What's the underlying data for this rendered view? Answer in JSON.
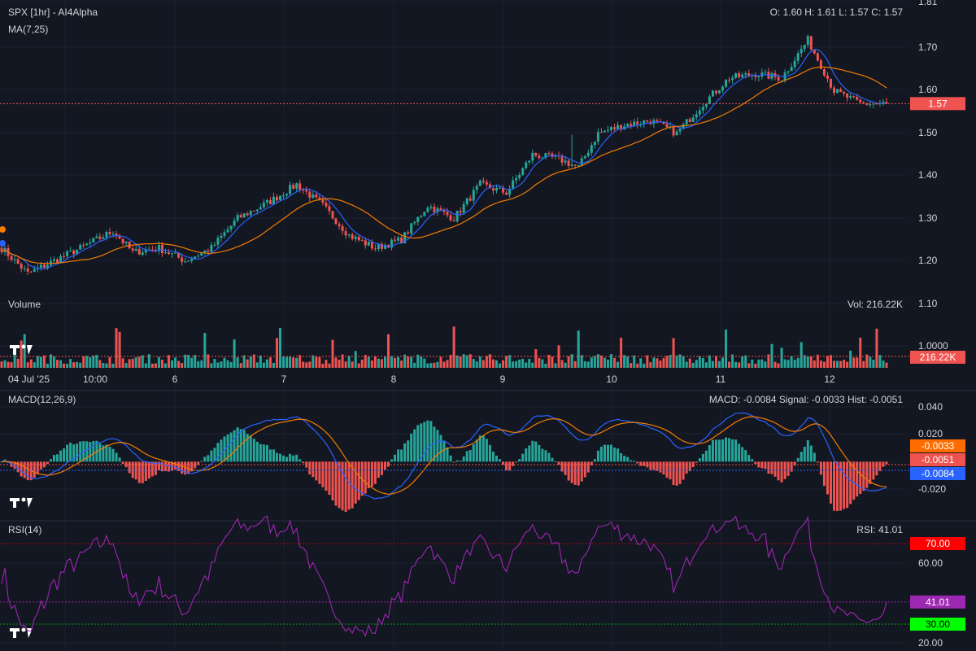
{
  "main": {
    "title": "SPX [1hr] - AI4Alpha",
    "indicator": "MA(7,25)",
    "ohlc": "O: 1.60 H: 1.61 L: 1.57 C: 1.57",
    "last_price": "1.57",
    "price_ticks": [
      "1.81",
      "1.70",
      "1.60",
      "1.50",
      "1.40",
      "1.30",
      "1.20",
      "1.10",
      "1.0000"
    ]
  },
  "volume": {
    "label": "Volume",
    "readout": "Vol: 216.22K",
    "last": "216.22K"
  },
  "time_axis": [
    "04 Jul '25",
    "10:00",
    "6",
    "7",
    "8",
    "9",
    "10",
    "11",
    "12"
  ],
  "macd": {
    "label": "MACD(12,26,9)",
    "readout": "MACD: -0.0084 Signal: -0.0033 Hist: -0.0051",
    "ticks": [
      "0.040",
      "0.020",
      "-0.020"
    ],
    "signal_tag": "-0.0033",
    "hist_tag": "-0.0051",
    "macd_tag": "-0.0084"
  },
  "rsi": {
    "label": "RSI(14)",
    "readout": "RSI: 41.01",
    "ticks": [
      "60.00",
      "20.00"
    ],
    "upper_tag": "70.00",
    "value_tag": "41.01",
    "lower_tag": "30.00"
  },
  "colors": {
    "background": "#131722",
    "up": "#26a69a",
    "down": "#ef5350",
    "ma_fast": "#2962ff",
    "ma_slow": "#f57c00",
    "rsi": "#9c27b0",
    "rsi_upper": "#ff0000",
    "rsi_lower": "#00ff00",
    "macd_signal_tag": "#ff6d00"
  },
  "chart_data": [
    {
      "type": "candlestick",
      "title": "SPX [1hr] - AI4Alpha",
      "x": [
        "04 Jul '25",
        "10:00",
        "6",
        "7",
        "8",
        "9",
        "10",
        "11",
        "12"
      ],
      "ylim": [
        1.0,
        1.81
      ],
      "anchors": [
        {
          "i": 0,
          "v": 1.23
        },
        {
          "i": 8,
          "v": 1.17
        },
        {
          "i": 16,
          "v": 1.2
        },
        {
          "i": 24,
          "v": 1.23
        },
        {
          "i": 34,
          "v": 1.27
        },
        {
          "i": 40,
          "v": 1.22
        },
        {
          "i": 48,
          "v": 1.23
        },
        {
          "i": 56,
          "v": 1.2
        },
        {
          "i": 64,
          "v": 1.23
        },
        {
          "i": 72,
          "v": 1.3
        },
        {
          "i": 82,
          "v": 1.34
        },
        {
          "i": 90,
          "v": 1.38
        },
        {
          "i": 98,
          "v": 1.33
        },
        {
          "i": 106,
          "v": 1.26
        },
        {
          "i": 114,
          "v": 1.23
        },
        {
          "i": 122,
          "v": 1.25
        },
        {
          "i": 130,
          "v": 1.33
        },
        {
          "i": 138,
          "v": 1.3
        },
        {
          "i": 146,
          "v": 1.38
        },
        {
          "i": 154,
          "v": 1.36
        },
        {
          "i": 162,
          "v": 1.45
        },
        {
          "i": 170,
          "v": 1.44
        },
        {
          "i": 176,
          "v": 1.42
        },
        {
          "i": 182,
          "v": 1.5
        },
        {
          "i": 190,
          "v": 1.52
        },
        {
          "i": 198,
          "v": 1.53
        },
        {
          "i": 206,
          "v": 1.5
        },
        {
          "i": 214,
          "v": 1.57
        },
        {
          "i": 222,
          "v": 1.63
        },
        {
          "i": 230,
          "v": 1.64
        },
        {
          "i": 238,
          "v": 1.63
        },
        {
          "i": 246,
          "v": 1.72
        },
        {
          "i": 254,
          "v": 1.6
        },
        {
          "i": 262,
          "v": 1.57
        },
        {
          "i": 270,
          "v": 1.57
        }
      ],
      "moving_averages": [
        "MA 7",
        "MA 25"
      ]
    },
    {
      "type": "bar",
      "title": "Volume",
      "last_value": "216.22K"
    },
    {
      "type": "line",
      "title": "MACD(12,26,9)",
      "ylim": [
        -0.03,
        0.045
      ],
      "macd": -0.0084,
      "signal": -0.0033,
      "hist": -0.0051
    },
    {
      "type": "line",
      "title": "RSI(14)",
      "ylim": [
        20,
        80
      ],
      "levels": [
        70,
        30
      ],
      "value": 41.01
    }
  ]
}
